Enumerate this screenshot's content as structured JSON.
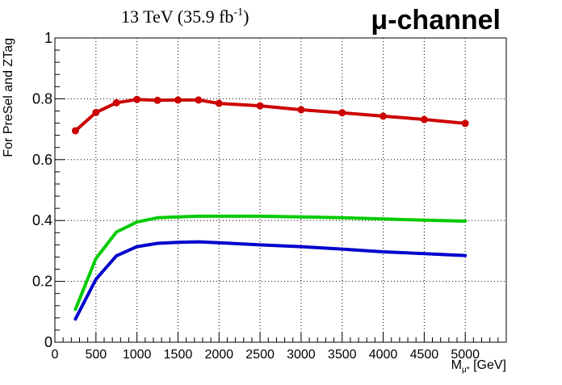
{
  "chart_data": {
    "type": "line",
    "title_left": "13 TeV (35.9 fb",
    "title_left_sup": "-1",
    "title_left_close": ")",
    "title_right": "μ-channel",
    "xlabel_main": "M",
    "xlabel_sub": "μ*",
    "xlabel_unit": " [GeV]",
    "ylabel": "For PreSel and ZTag",
    "xlim": [
      0,
      5500
    ],
    "ylim": [
      0,
      1
    ],
    "xticks": [
      0,
      500,
      1000,
      1500,
      2000,
      2500,
      3000,
      3500,
      4000,
      4500,
      5000
    ],
    "yticks": [
      0,
      0.2,
      0.4,
      0.6,
      0.8,
      1
    ],
    "ytick_labels": [
      "0",
      "0.2",
      "0.4",
      "0.6",
      "0.8",
      "1"
    ],
    "grid": true,
    "series": [
      {
        "color": "#cc0000",
        "markers": true,
        "x": [
          250,
          500,
          750,
          1000,
          1250,
          1500,
          1750,
          2000,
          2500,
          3000,
          3500,
          4000,
          4500,
          5000
        ],
        "y": [
          0.695,
          0.755,
          0.787,
          0.798,
          0.795,
          0.796,
          0.796,
          0.785,
          0.777,
          0.764,
          0.754,
          0.743,
          0.732,
          0.719
        ]
      },
      {
        "color": "#00cc00",
        "markers": false,
        "x": [
          250,
          500,
          750,
          1000,
          1250,
          1500,
          1750,
          2000,
          2500,
          3000,
          3500,
          4000,
          4500,
          5000
        ],
        "y": [
          0.108,
          0.275,
          0.362,
          0.395,
          0.409,
          0.412,
          0.414,
          0.414,
          0.414,
          0.412,
          0.409,
          0.405,
          0.401,
          0.398
        ]
      },
      {
        "color": "#0000cc",
        "markers": false,
        "x": [
          250,
          500,
          750,
          1000,
          1250,
          1500,
          1750,
          2000,
          2500,
          3000,
          3500,
          4000,
          4500,
          5000
        ],
        "y": [
          0.076,
          0.207,
          0.284,
          0.314,
          0.325,
          0.328,
          0.33,
          0.327,
          0.32,
          0.314,
          0.306,
          0.297,
          0.291,
          0.285
        ]
      }
    ]
  }
}
